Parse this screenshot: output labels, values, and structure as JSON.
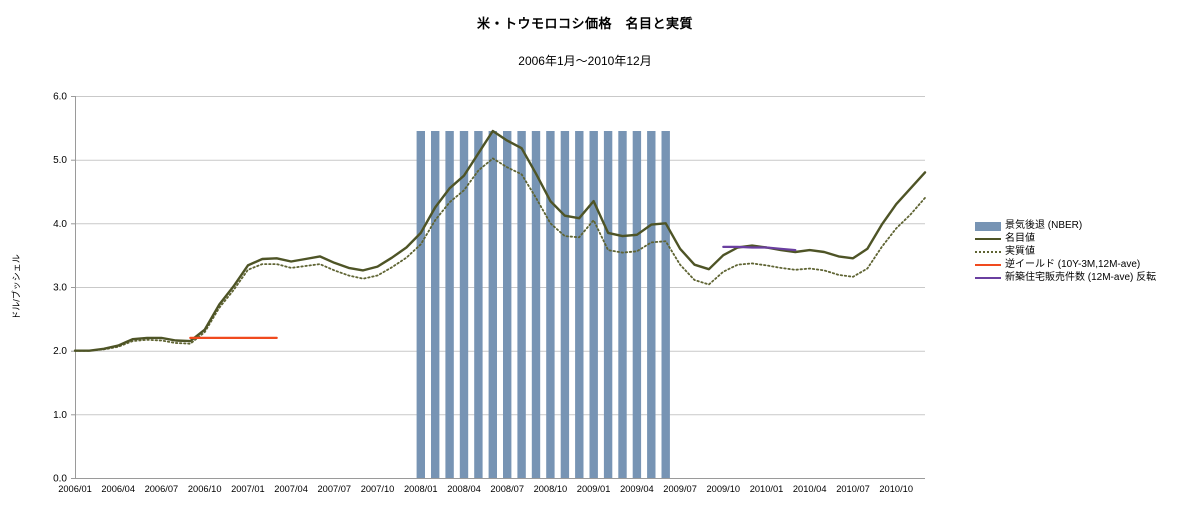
{
  "title": "米・トウモロコシ価格　名目と実質",
  "subtitle": "2006年1月～2010年12月",
  "y_axis_title": "ドル/ブッシェル",
  "legend": [
    {
      "label": "景気後退 (NBER)",
      "type": "bar",
      "color": "#7794b4"
    },
    {
      "label": "名目値",
      "type": "line",
      "color": "#4e5426"
    },
    {
      "label": "実質値",
      "type": "dotted",
      "color": "#5f6433"
    },
    {
      "label": "逆イールド (10Y-3M,12M-ave)",
      "type": "line",
      "color": "#f04a1e"
    },
    {
      "label": "新築住宅販売件数 (12M-ave) 反転",
      "type": "line",
      "color": "#6a3fa0"
    }
  ],
  "chart_data": {
    "type": "line",
    "title": "米・トウモロコシ価格　名目と実質",
    "subtitle": "2006年1月～2010年12月",
    "ylabel": "ドル/ブッシェル",
    "x_start": "2006/01",
    "x_end": "2010/12",
    "n_points": 60,
    "x_tick_every": 3,
    "x_ticks": [
      "2006/01",
      "2006/04",
      "2006/07",
      "2006/10",
      "2007/01",
      "2007/04",
      "2007/07",
      "2007/10",
      "2008/01",
      "2008/04",
      "2008/07",
      "2008/10",
      "2009/01",
      "2009/04",
      "2009/07",
      "2009/10",
      "2010/01",
      "2010/04",
      "2010/07",
      "2010/10"
    ],
    "ylim": [
      0,
      6
    ],
    "y_ticks": [
      "0.0",
      "1.0",
      "2.0",
      "3.0",
      "4.0",
      "5.0",
      "6.0"
    ],
    "colors": {
      "grid": "#c9c9c9",
      "axis": "#9a9a9a",
      "text": "#000000"
    },
    "recession": {
      "label": "景気後退 (NBER)",
      "color": "#7794b4",
      "start": "2008/01",
      "end": "2009/06",
      "start_index": 24,
      "end_index": 41,
      "top": 5.45
    },
    "series": [
      {
        "name": "実質値",
        "data_name": "real-price-line",
        "color": "#5f6433",
        "style": "dotted",
        "width": 1.8,
        "start": "2006/01",
        "start_index": 0,
        "values": [
          2.0,
          2.0,
          2.02,
          2.06,
          2.15,
          2.17,
          2.16,
          2.12,
          2.11,
          2.29,
          2.67,
          2.95,
          3.27,
          3.36,
          3.36,
          3.3,
          3.33,
          3.36,
          3.26,
          3.18,
          3.13,
          3.18,
          3.31,
          3.46,
          3.67,
          4.05,
          4.33,
          4.52,
          4.83,
          5.02,
          4.88,
          4.77,
          4.4,
          4.0,
          3.8,
          3.78,
          4.05,
          3.58,
          3.54,
          3.56,
          3.7,
          3.72,
          3.35,
          3.11,
          3.04,
          3.24,
          3.35,
          3.37,
          3.34,
          3.3,
          3.27,
          3.29,
          3.26,
          3.19,
          3.16,
          3.29,
          3.63,
          3.92,
          4.14,
          4.4
        ]
      },
      {
        "name": "名目値",
        "data_name": "nominal-price-line",
        "color": "#4e5426",
        "style": "solid",
        "width": 2.4,
        "start": "2006/01",
        "start_index": 0,
        "values": [
          2.0,
          2.0,
          2.03,
          2.08,
          2.18,
          2.2,
          2.2,
          2.16,
          2.15,
          2.33,
          2.72,
          3.01,
          3.34,
          3.44,
          3.45,
          3.4,
          3.44,
          3.48,
          3.38,
          3.3,
          3.26,
          3.32,
          3.46,
          3.62,
          3.85,
          4.25,
          4.55,
          4.75,
          5.1,
          5.45,
          5.3,
          5.18,
          4.78,
          4.35,
          4.12,
          4.08,
          4.35,
          3.85,
          3.8,
          3.82,
          3.98,
          4.0,
          3.6,
          3.35,
          3.28,
          3.5,
          3.62,
          3.65,
          3.62,
          3.58,
          3.55,
          3.58,
          3.55,
          3.48,
          3.45,
          3.6,
          3.98,
          4.3,
          4.55,
          4.8
        ]
      },
      {
        "name": "新築住宅販売件数 (12M-ave) 反転",
        "data_name": "new-home-sales-line",
        "color": "#6a3fa0",
        "style": "solid",
        "width": 2.2,
        "start": "2009/10",
        "end": "2010/03",
        "start_index": 45,
        "values": [
          3.63,
          3.63,
          3.62,
          3.62,
          3.6,
          3.58
        ]
      },
      {
        "name": "逆イールド (10Y-3M,12M-ave)",
        "data_name": "inverted-yield-line",
        "color": "#f04a1e",
        "style": "solid",
        "width": 2.2,
        "start": "2006/09",
        "end": "2007/03",
        "start_index": 8,
        "values": [
          2.2,
          2.2,
          2.2,
          2.2,
          2.2,
          2.2,
          2.2
        ]
      }
    ]
  }
}
